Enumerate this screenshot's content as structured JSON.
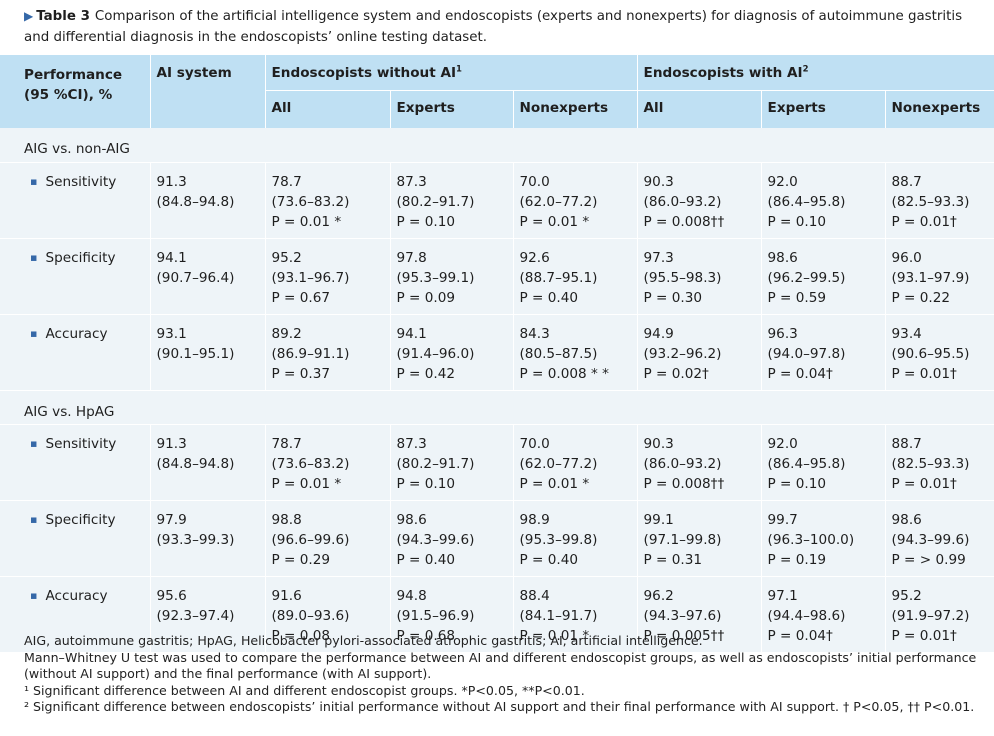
{
  "caption": {
    "marker": "▶",
    "label": "Table 3",
    "text": "Comparison of the artificial intelligence system and endoscopists (experts and nonexperts) for diagnosis of autoimmune gastritis and differential diagnosis in the endoscopists’ online testing dataset."
  },
  "header": {
    "performance_line1": "Performance",
    "performance_line2": "(95 %CI), %",
    "ai_system": "AI system",
    "group_without": "Endoscopists without AI",
    "group_without_sup": "1",
    "group_with": "Endoscopists with AI",
    "group_with_sup": "2",
    "sub": [
      "All",
      "Experts",
      "Nonexperts",
      "All",
      "Experts",
      "Nonexperts"
    ]
  },
  "sections": [
    {
      "title": "AIG vs. non-AIG",
      "rows": [
        {
          "metric": "Sensitivity",
          "ai": [
            "91.3",
            "(84.8–94.8)"
          ],
          "cells": [
            [
              "78.7",
              "(73.6–83.2)",
              "P = 0.01 *"
            ],
            [
              "87.3",
              "(80.2–91.7)",
              "P = 0.10"
            ],
            [
              "70.0",
              "(62.0–77.2)",
              "P = 0.01 *"
            ],
            [
              "90.3",
              "(86.0–93.2)",
              "P = 0.008††"
            ],
            [
              "92.0",
              "(86.4–95.8)",
              "P = 0.10"
            ],
            [
              "88.7",
              "(82.5–93.3)",
              "P = 0.01†"
            ]
          ]
        },
        {
          "metric": "Specificity",
          "ai": [
            "94.1",
            "(90.7–96.4)"
          ],
          "cells": [
            [
              "95.2",
              "(93.1–96.7)",
              "P = 0.67"
            ],
            [
              "97.8",
              "(95.3–99.1)",
              "P = 0.09"
            ],
            [
              "92.6",
              "(88.7–95.1)",
              "P = 0.40"
            ],
            [
              "97.3",
              "(95.5–98.3)",
              "P = 0.30"
            ],
            [
              "98.6",
              "(96.2–99.5)",
              "P = 0.59"
            ],
            [
              "96.0",
              "(93.1–97.9)",
              "P = 0.22"
            ]
          ]
        },
        {
          "metric": "Accuracy",
          "ai": [
            "93.1",
            "(90.1–95.1)"
          ],
          "cells": [
            [
              "89.2",
              "(86.9–91.1)",
              "P = 0.37"
            ],
            [
              "94.1",
              "(91.4–96.0)",
              "P = 0.42"
            ],
            [
              "84.3",
              "(80.5–87.5)",
              "P = 0.008 * *"
            ],
            [
              "94.9",
              "(93.2–96.2)",
              "P = 0.02†"
            ],
            [
              "96.3",
              "(94.0–97.8)",
              "P = 0.04†"
            ],
            [
              "93.4",
              "(90.6–95.5)",
              "P = 0.01†"
            ]
          ]
        }
      ]
    },
    {
      "title": "AIG vs. HpAG",
      "rows": [
        {
          "metric": "Sensitivity",
          "ai": [
            "91.3",
            "(84.8–94.8)"
          ],
          "cells": [
            [
              "78.7",
              "(73.6–83.2)",
              "P = 0.01 *"
            ],
            [
              "87.3",
              "(80.2–91.7)",
              "P = 0.10"
            ],
            [
              "70.0",
              "(62.0–77.2)",
              "P = 0.01 *"
            ],
            [
              "90.3",
              "(86.0–93.2)",
              "P = 0.008††"
            ],
            [
              "92.0",
              "(86.4–95.8)",
              "P = 0.10"
            ],
            [
              "88.7",
              "(82.5–93.3)",
              "P = 0.01†"
            ]
          ]
        },
        {
          "metric": "Specificity",
          "ai": [
            "97.9",
            "(93.3–99.3)"
          ],
          "cells": [
            [
              "98.8",
              "(96.6–99.6)",
              "P = 0.29"
            ],
            [
              "98.6",
              "(94.3–99.6)",
              "P = 0.40"
            ],
            [
              "98.9",
              "(95.3–99.8)",
              "P = 0.40"
            ],
            [
              "99.1",
              "(97.1–99.8)",
              "P = 0.31"
            ],
            [
              "99.7",
              "(96.3–100.0)",
              "P = 0.19"
            ],
            [
              "98.6",
              "(94.3–99.6)",
              "P = > 0.99"
            ]
          ]
        },
        {
          "metric": "Accuracy",
          "ai": [
            "95.6",
            "(92.3–97.4)"
          ],
          "cells": [
            [
              "91.6",
              "(89.0–93.6)",
              "P = 0.08"
            ],
            [
              "94.8",
              "(91.5–96.9)",
              "P = 0.68"
            ],
            [
              "88.4",
              "(84.1–91.7)",
              "P = 0.01 *"
            ],
            [
              "96.2",
              "(94.3–97.6)",
              "P = 0.005††"
            ],
            [
              "97.1",
              "(94.4–98.6)",
              "P = 0.04†"
            ],
            [
              "95.2",
              "(91.9–97.2)",
              "P = 0.01†"
            ]
          ]
        }
      ]
    }
  ],
  "footnotes": {
    "abbrev": "AIG, autoimmune gastritis; HpAG, Helicobacter pylori-associated atrophic gastritis; AI, artificial intelligence.",
    "test": "Mann–Whitney U test was used to compare the performance between AI and different endoscopist groups, as well as endoscopists’ initial performance (without AI support) and the final performance (with AI support).",
    "note1": "¹ Significant difference between AI and different endoscopist groups. *P<0.05, **P<0.01.",
    "note2": "² Significant difference between endoscopists’ initial performance without AI support and their final performance with AI support. † P<0.05, †† P<0.01."
  },
  "colors": {
    "header_bg": "#bfe0f3",
    "body_bg": "#eef4f8",
    "accent": "#3568a8"
  }
}
